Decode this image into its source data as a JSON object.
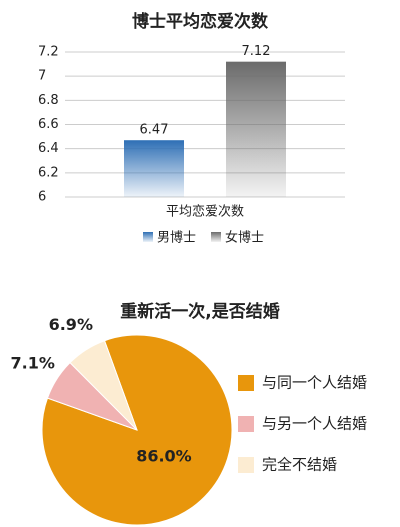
{
  "chart_data": [
    {
      "type": "bar",
      "title": "博士平均恋爱次数",
      "categories": [
        "平均恋爱次数"
      ],
      "series": [
        {
          "name": "男博士",
          "color": "#2e6fb5",
          "values": [
            6.47
          ]
        },
        {
          "name": "女博士",
          "color": "#6b6b6b",
          "values": [
            7.12
          ]
        }
      ],
      "ylim": [
        6,
        7.2
      ],
      "yticks": [
        6,
        6.2,
        6.4,
        6.6,
        6.8,
        7,
        7.2
      ],
      "grid": true,
      "legend": "bottom"
    },
    {
      "type": "pie",
      "title": "重新活一次,是否结婚",
      "categories": [
        "与同一个人结婚",
        "与另一个人结婚",
        "完全不结婚"
      ],
      "values": [
        86.0,
        7.1,
        6.9
      ],
      "value_labels": [
        "86.0%",
        "7.1%",
        "6.9%"
      ],
      "colors": [
        "#e8960c",
        "#f0b2b2",
        "#fcecd2"
      ],
      "legend": "right"
    }
  ]
}
